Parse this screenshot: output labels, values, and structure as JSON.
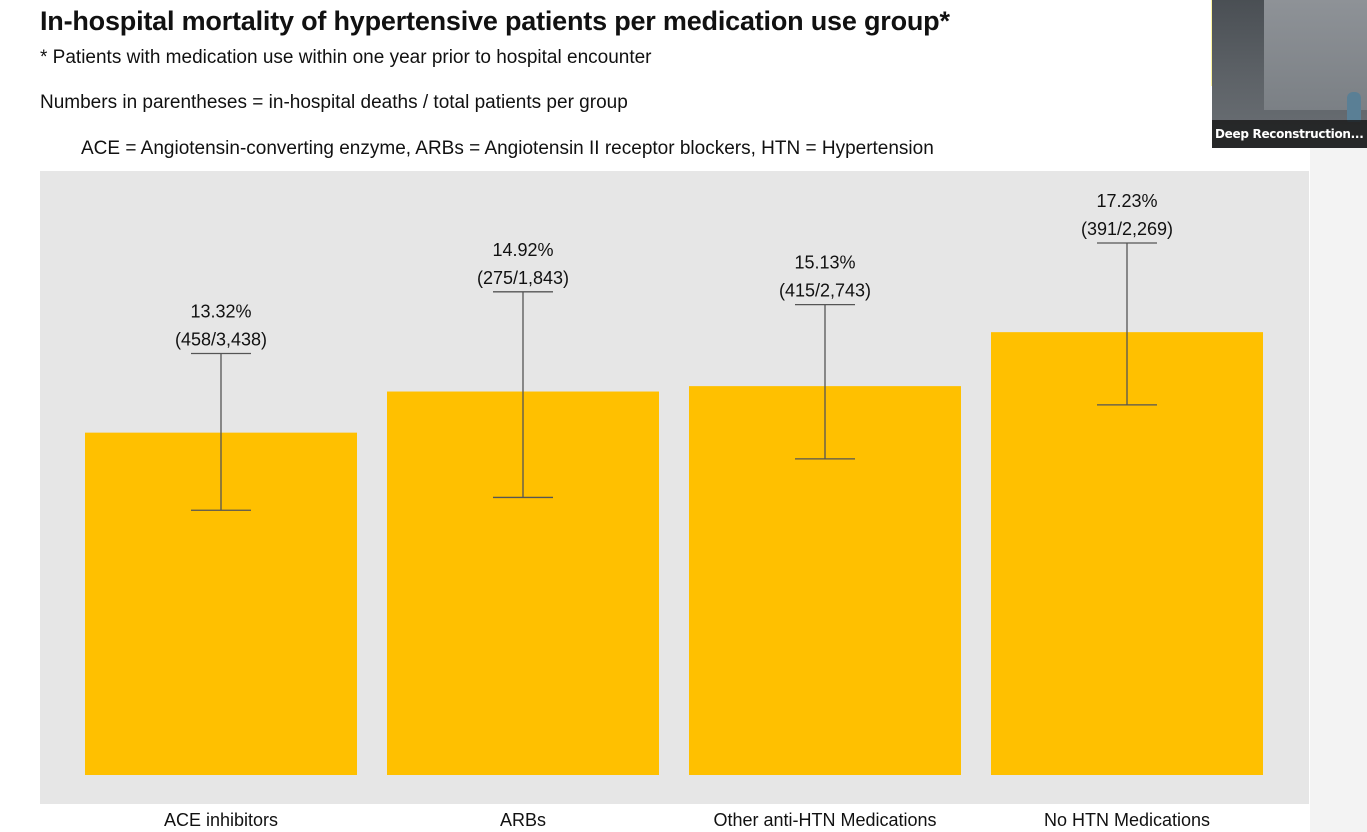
{
  "slide": {
    "title": "In-hospital mortality of hypertensive patients per medication use group*",
    "subtitle": "* Patients with medication use within one year prior to hospital encounter",
    "note": "Numbers in parentheses = in-hospital deaths / total patients per group",
    "abbreviations": "ACE = Angiotensin-converting enzyme,  ARBs = Angiotensin II receptor blockers, HTN = Hypertension"
  },
  "video": {
    "participant_label": "Deep Reconstruction..."
  },
  "colors": {
    "bar": "#FFC000",
    "panel": "#E6E6E6",
    "error_bar": "#555555",
    "text": "#111111"
  },
  "chart_data": {
    "type": "bar",
    "categories": [
      "ACE inhibitors",
      "ARBs",
      "Other anti-HTN Medications",
      "No HTN Medications"
    ],
    "values": [
      13.32,
      14.92,
      15.13,
      17.23
    ],
    "value_labels": [
      "13.32%",
      "14.92%",
      "15.13%",
      "17.23%"
    ],
    "count_labels": [
      "(458/3,438)",
      "(275/1,843)",
      "(415/2,743)",
      "(391/2,269)"
    ],
    "error_low": [
      10.3,
      10.8,
      12.3,
      14.4
    ],
    "error_high": [
      16.4,
      18.8,
      18.3,
      20.7
    ],
    "ylim": [
      0,
      23.5
    ],
    "title": "",
    "xlabel": "",
    "ylabel": "",
    "grid": false,
    "legend": "none"
  }
}
